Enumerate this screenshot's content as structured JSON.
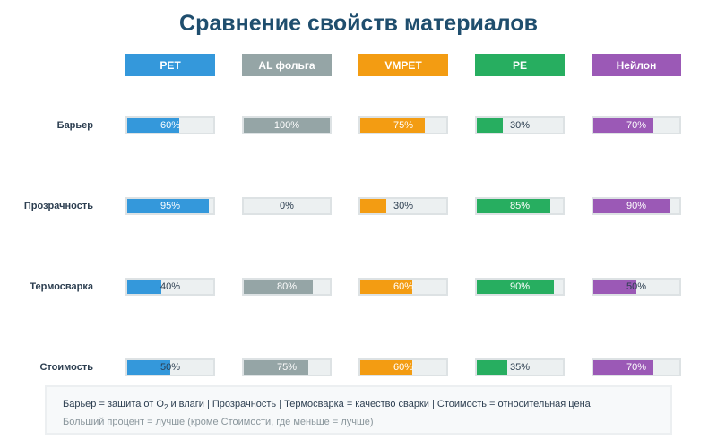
{
  "title": "Сравнение свойств материалов",
  "chart_data": {
    "type": "table",
    "title": "Сравнение свойств материалов",
    "materials": [
      {
        "name": "PET",
        "color": "#3498db"
      },
      {
        "name": "AL фольга",
        "color": "#95a5a6"
      },
      {
        "name": "VMPET",
        "color": "#f39c12"
      },
      {
        "name": "PE",
        "color": "#27ae60"
      },
      {
        "name": "Нейлон",
        "color": "#9b59b6"
      }
    ],
    "properties": [
      "Барьер",
      "Прозрачность",
      "Термосварка",
      "Стоимость"
    ],
    "values": [
      [
        60,
        100,
        75,
        30,
        70
      ],
      [
        95,
        0,
        30,
        85,
        90
      ],
      [
        40,
        80,
        60,
        90,
        50
      ],
      [
        50,
        75,
        60,
        35,
        70
      ]
    ],
    "labels": [
      [
        "60%",
        "100%",
        "75%",
        "30%",
        "70%"
      ],
      [
        "95%",
        "0%",
        "30%",
        "85%",
        "90%"
      ],
      [
        "40%",
        "80%",
        "60%",
        "90%",
        "50%"
      ],
      [
        "50%",
        "75%",
        "60%",
        "35%",
        "70%"
      ]
    ],
    "unit": "%",
    "range": [
      0,
      100
    ]
  },
  "legend": {
    "line1_a": "Барьер = защита от O",
    "line1_sub": "2",
    "line1_b": " и влаги | Прозрачность | Термосварка = качество сварки | Стоимость = относительная цена",
    "line2": "Больший процент = лучше (кроме Стоимости, где меньше = лучше)"
  }
}
